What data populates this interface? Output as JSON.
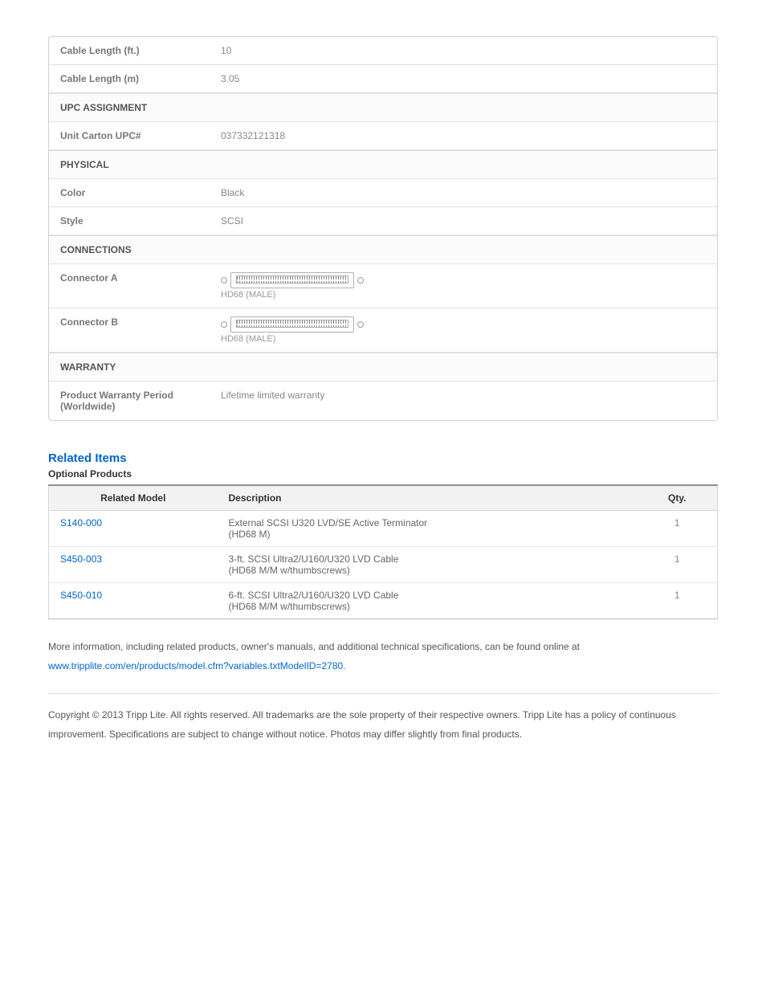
{
  "spec_rows": [
    {
      "type": "row",
      "label": "Cable Length (ft.)",
      "value": "10"
    },
    {
      "type": "row",
      "label": "Cable Length (m)",
      "value": "3.05"
    },
    {
      "type": "section",
      "label": "UPC ASSIGNMENT"
    },
    {
      "type": "row",
      "label": "Unit Carton UPC#",
      "value": "037332121318"
    },
    {
      "type": "section",
      "label": "PHYSICAL"
    },
    {
      "type": "row",
      "label": "Color",
      "value": "Black"
    },
    {
      "type": "row",
      "label": "Style",
      "value": "SCSI"
    },
    {
      "type": "section",
      "label": "CONNECTIONS"
    },
    {
      "type": "connector",
      "label": "Connector A",
      "conn_label": "HD68 (MALE)"
    },
    {
      "type": "connector",
      "label": "Connector B",
      "conn_label": "HD68 (MALE)"
    },
    {
      "type": "section",
      "label": "WARRANTY"
    },
    {
      "type": "row",
      "label": "Product Warranty Period (Worldwide)",
      "value": "Lifetime limited warranty"
    }
  ],
  "related": {
    "heading": "Related Items",
    "subheading": "Optional Products",
    "columns": [
      "Related Model",
      "Description",
      "Qty."
    ],
    "rows": [
      {
        "model": "S140-000",
        "desc_line1": "External SCSI U320 LVD/SE Active Terminator",
        "desc_line2": "(HD68 M)",
        "qty": "1"
      },
      {
        "model": "S450-003",
        "desc_line1": "3-ft. SCSI Ultra2/U160/U320 LVD Cable",
        "desc_line2": "(HD68 M/M w/thumbscrews)",
        "qty": "1"
      },
      {
        "model": "S450-010",
        "desc_line1": "6-ft. SCSI Ultra2/U160/U320 LVD Cable",
        "desc_line2": "(HD68 M/M w/thumbscrews)",
        "qty": "1"
      }
    ]
  },
  "info": {
    "text": "More information, including related products, owner's manuals, and additional technical specifications, can be found online at",
    "link": "www.tripplite.com/en/products/model.cfm?variables.txtModelID=2780",
    "period": "."
  },
  "copyright": "Copyright © 2013 Tripp Lite. All rights reserved. All trademarks are the sole property of their respective owners. Tripp Lite has a policy of continuous improvement. Specifications are subject to change without notice. Photos may differ slightly from final products."
}
